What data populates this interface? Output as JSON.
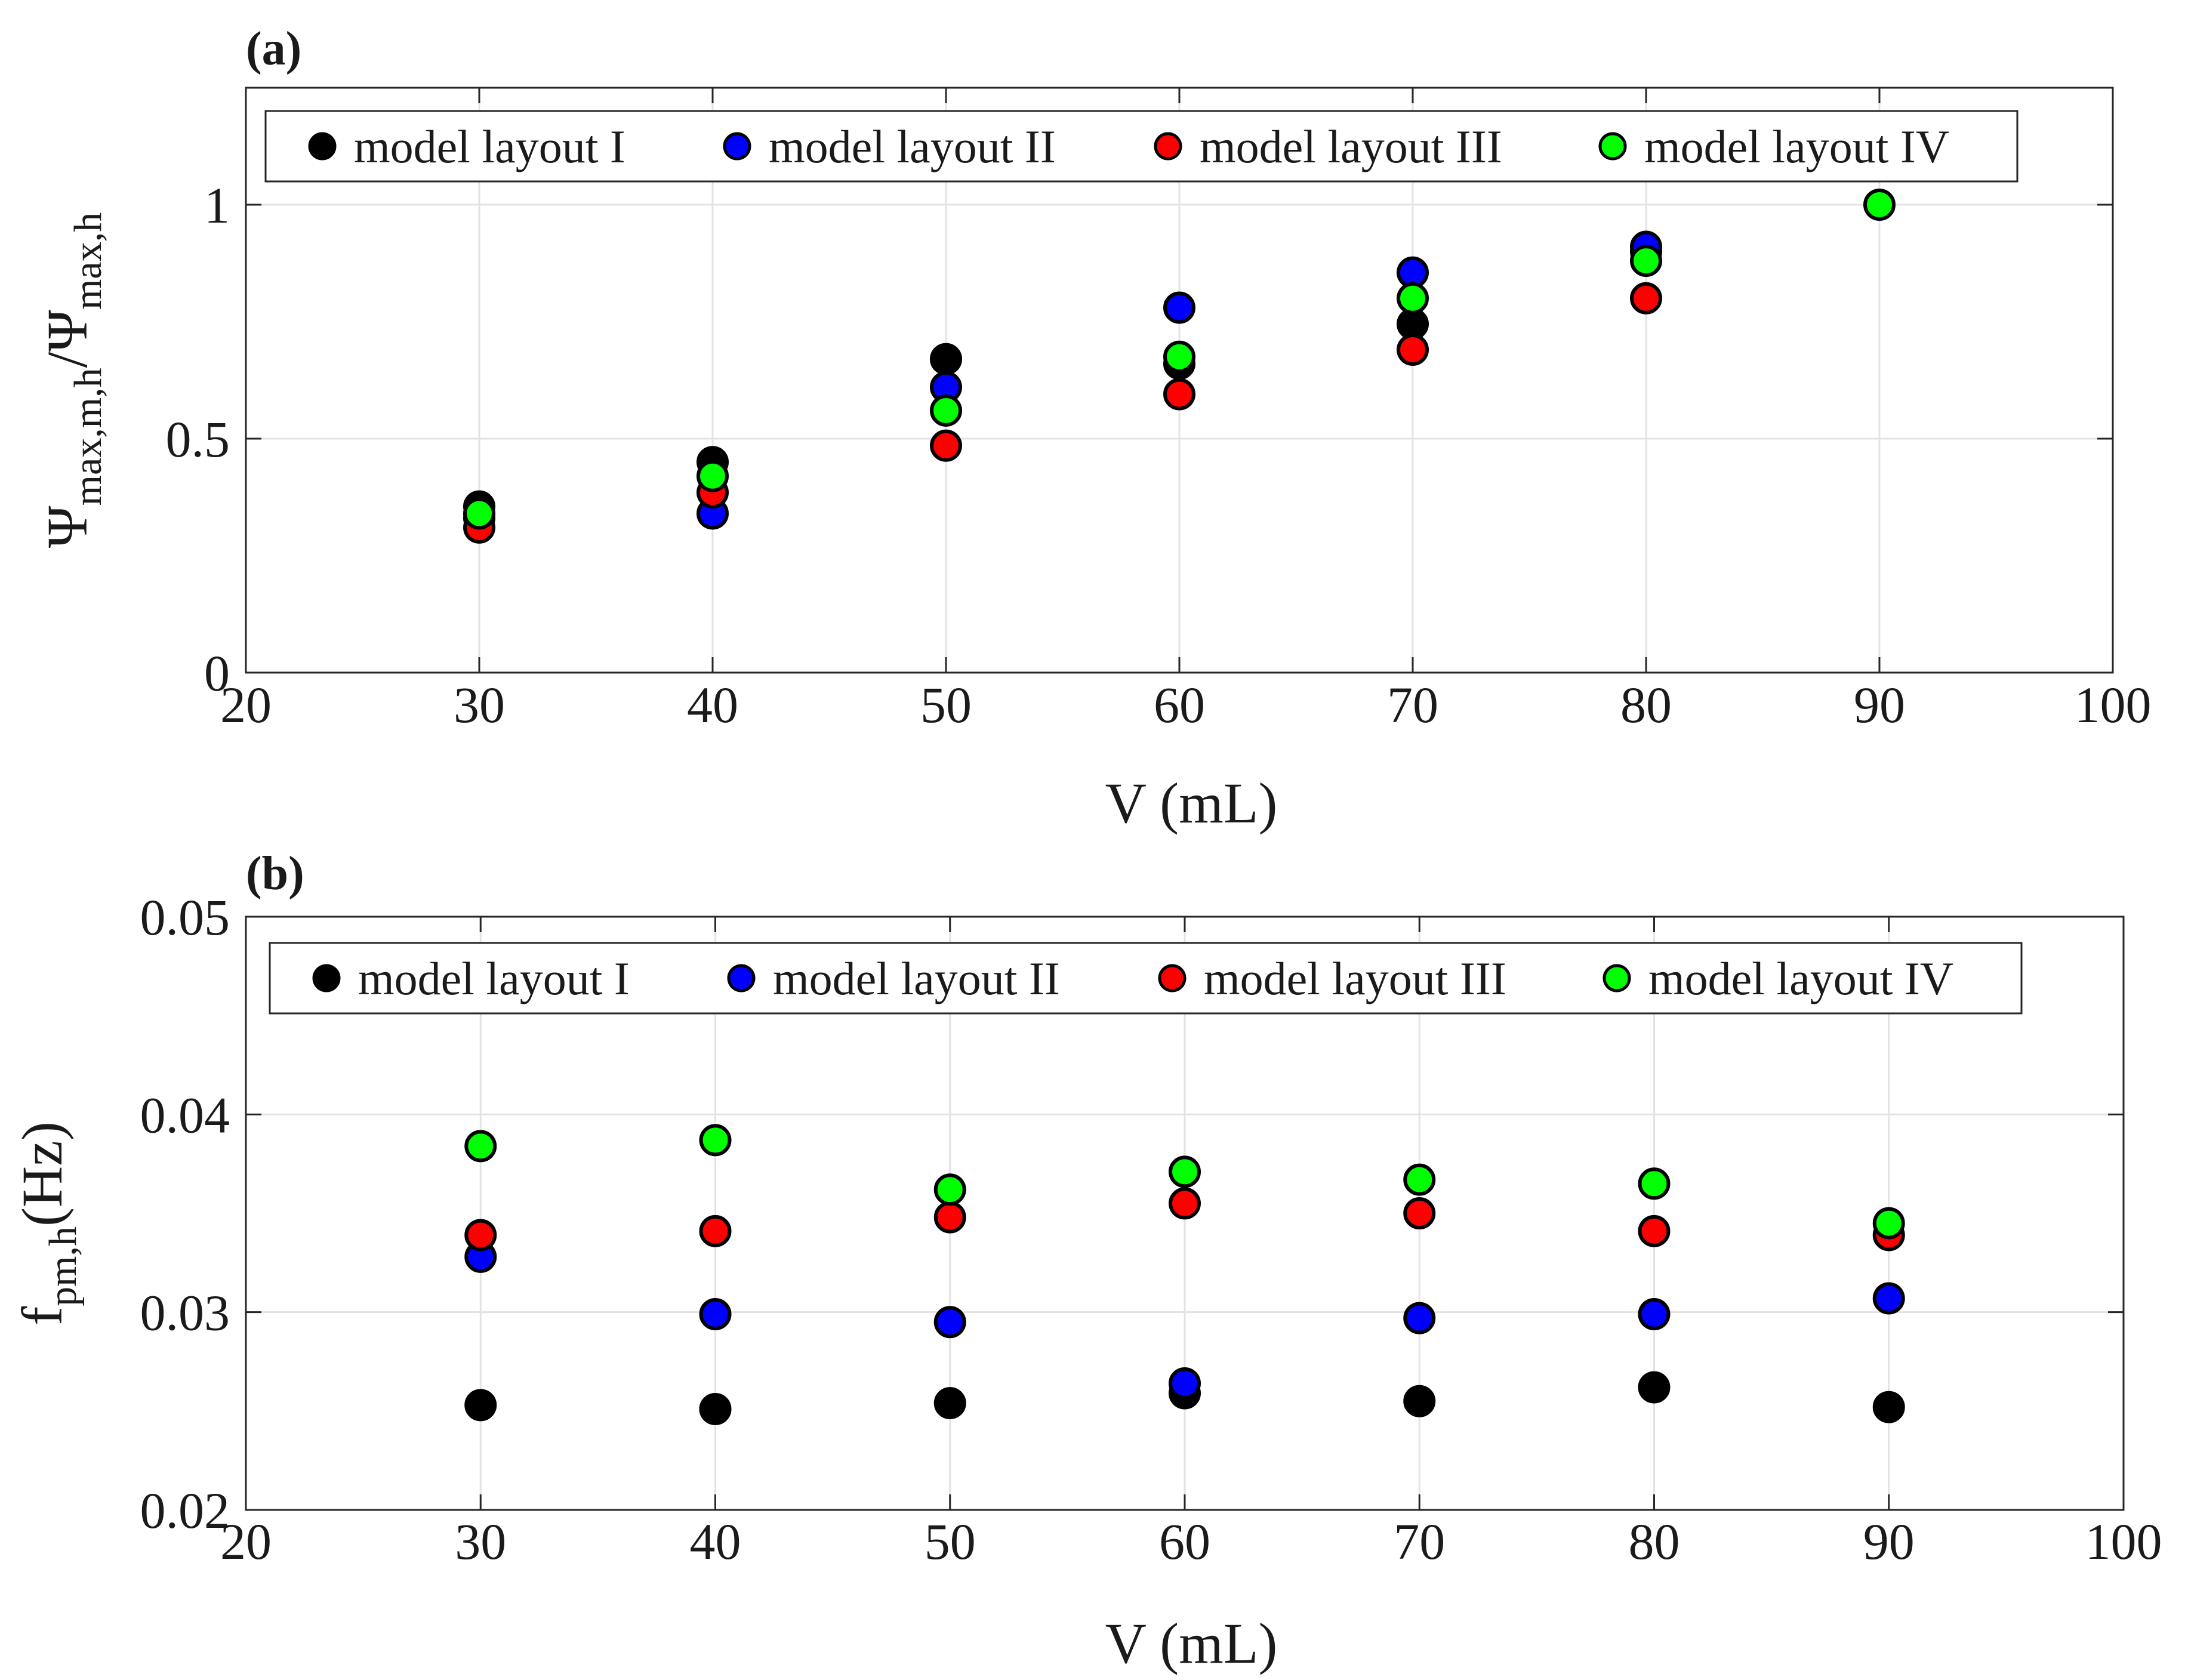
{
  "colors": {
    "model_layout_I": "#000000",
    "model_layout_II": "#0000ff",
    "model_layout_III": "#ff0000",
    "model_layout_IV": "#00ff00",
    "grid": "#e3e3e3",
    "axis": "#262626",
    "marker_edge": "#000000"
  },
  "chart_data": [
    {
      "type": "scatter",
      "panel_label": "(a)",
      "xlabel": "V (mL)",
      "ylabel": {
        "psi_1": "Ψ",
        "sub_1": "max,m,h",
        "slash": "/",
        "psi_2": "Ψ",
        "sub_2": "max,h"
      },
      "xlim": [
        20,
        100
      ],
      "ylim": [
        0,
        1.25
      ],
      "xticks": [
        20,
        30,
        40,
        50,
        60,
        70,
        80,
        90,
        100
      ],
      "xtick_labels": [
        "20",
        "30",
        "40",
        "50",
        "60",
        "70",
        "80",
        "90",
        "100"
      ],
      "yticks": [
        0,
        0.5,
        1
      ],
      "ytick_labels": [
        "0",
        "0.5",
        "1"
      ],
      "grid": true,
      "legend_position": "top, horizontal",
      "series": [
        {
          "name": "model layout I",
          "color_key": "model_layout_I",
          "x": [
            30,
            40,
            50,
            60,
            70,
            80
          ],
          "y": [
            0.355,
            0.45,
            0.67,
            0.66,
            0.745,
            0.9
          ]
        },
        {
          "name": "model layout II",
          "color_key": "model_layout_II",
          "x": [
            30,
            40,
            50,
            60,
            70,
            80
          ],
          "y": [
            0.33,
            0.34,
            0.61,
            0.78,
            0.855,
            0.91
          ]
        },
        {
          "name": "model layout III",
          "color_key": "model_layout_III",
          "x": [
            30,
            40,
            50,
            60,
            70,
            80
          ],
          "y": [
            0.31,
            0.385,
            0.485,
            0.595,
            0.69,
            0.8
          ]
        },
        {
          "name": "model layout IV",
          "color_key": "model_layout_IV",
          "x": [
            30,
            40,
            50,
            60,
            70,
            80,
            90
          ],
          "y": [
            0.34,
            0.42,
            0.56,
            0.675,
            0.8,
            0.88,
            1.0
          ]
        }
      ]
    },
    {
      "type": "scatter",
      "panel_label": "(b)",
      "xlabel": "V (mL)",
      "ylabel": {
        "main": "f",
        "sub": "pm,h",
        "unit": "(Hz)"
      },
      "xlim": [
        20,
        100
      ],
      "ylim": [
        0.02,
        0.05
      ],
      "xticks": [
        20,
        30,
        40,
        50,
        60,
        70,
        80,
        90,
        100
      ],
      "xtick_labels": [
        "20",
        "30",
        "40",
        "50",
        "60",
        "70",
        "80",
        "90",
        "100"
      ],
      "yticks": [
        0.02,
        0.03,
        0.04,
        0.05
      ],
      "ytick_labels": [
        "0.02",
        "0.03",
        "0.04",
        "0.05"
      ],
      "grid": true,
      "legend_position": "top, horizontal",
      "series": [
        {
          "name": "model layout I",
          "color_key": "model_layout_I",
          "x": [
            30,
            40,
            50,
            60,
            70,
            80,
            90
          ],
          "y": [
            0.0253,
            0.0251,
            0.0254,
            0.0259,
            0.0255,
            0.0262,
            0.0252
          ]
        },
        {
          "name": "model layout II",
          "color_key": "model_layout_II",
          "x": [
            30,
            40,
            50,
            60,
            70,
            80,
            90
          ],
          "y": [
            0.0328,
            0.0299,
            0.0295,
            0.0264,
            0.0297,
            0.0299,
            0.0307
          ]
        },
        {
          "name": "model layout III",
          "color_key": "model_layout_III",
          "x": [
            30,
            40,
            50,
            60,
            70,
            80,
            90
          ],
          "y": [
            0.0339,
            0.0341,
            0.0348,
            0.0355,
            0.035,
            0.0341,
            0.0339
          ]
        },
        {
          "name": "model layout IV",
          "color_key": "model_layout_IV",
          "x": [
            30,
            40,
            50,
            60,
            70,
            80,
            90
          ],
          "y": [
            0.0384,
            0.0387,
            0.0362,
            0.0371,
            0.0367,
            0.0365,
            0.0345
          ]
        }
      ]
    }
  ]
}
